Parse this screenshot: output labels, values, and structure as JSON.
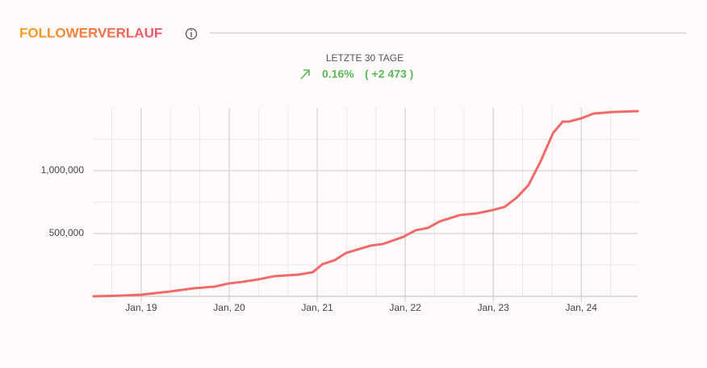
{
  "header": {
    "title": "FOLLOWERVERLAUF"
  },
  "summary": {
    "period": "LETZTE 30 TAGE",
    "change_percent": "0.16%",
    "change_absolute": "( +2 473 )"
  },
  "chart_data": {
    "type": "line",
    "x": [
      2018.46,
      2018.77,
      2019.0,
      2019.32,
      2019.6,
      2019.83,
      2020.0,
      2020.15,
      2020.33,
      2020.51,
      2020.79,
      2020.95,
      2021.06,
      2021.2,
      2021.33,
      2021.61,
      2021.75,
      2021.98,
      2022.12,
      2022.26,
      2022.39,
      2022.62,
      2022.81,
      2022.99,
      2023.13,
      2023.27,
      2023.4,
      2023.54,
      2023.68,
      2023.79,
      2023.86,
      2024.0,
      2024.14,
      2024.37,
      2024.64
    ],
    "series": [
      {
        "color": "#f06a6a",
        "values": [
          0,
          6000,
          13000,
          38000,
          64000,
          77000,
          103000,
          115000,
          135000,
          160000,
          173000,
          192000,
          256000,
          288000,
          346000,
          404000,
          417000,
          474000,
          526000,
          545000,
          596000,
          647000,
          660000,
          686000,
          712000,
          788000,
          885000,
          1077000,
          1301000,
          1391000,
          1391000,
          1417000,
          1455000,
          1468000,
          1474000
        ]
      }
    ],
    "xlim": [
      2018.46,
      2024.64
    ],
    "xticks": [
      {
        "value": 2019,
        "label": "Jan, 19"
      },
      {
        "value": 2020,
        "label": "Jan, 20"
      },
      {
        "value": 2021,
        "label": "Jan, 21"
      },
      {
        "value": 2022,
        "label": "Jan, 22"
      },
      {
        "value": 2023,
        "label": "Jan, 23"
      },
      {
        "value": 2024,
        "label": "Jan, 24"
      }
    ],
    "ylim": [
      0,
      1500000
    ],
    "yticks": [
      {
        "value": 500000,
        "label": "500,000"
      },
      {
        "value": 1000000,
        "label": "1,000,000"
      }
    ],
    "grid": true
  }
}
